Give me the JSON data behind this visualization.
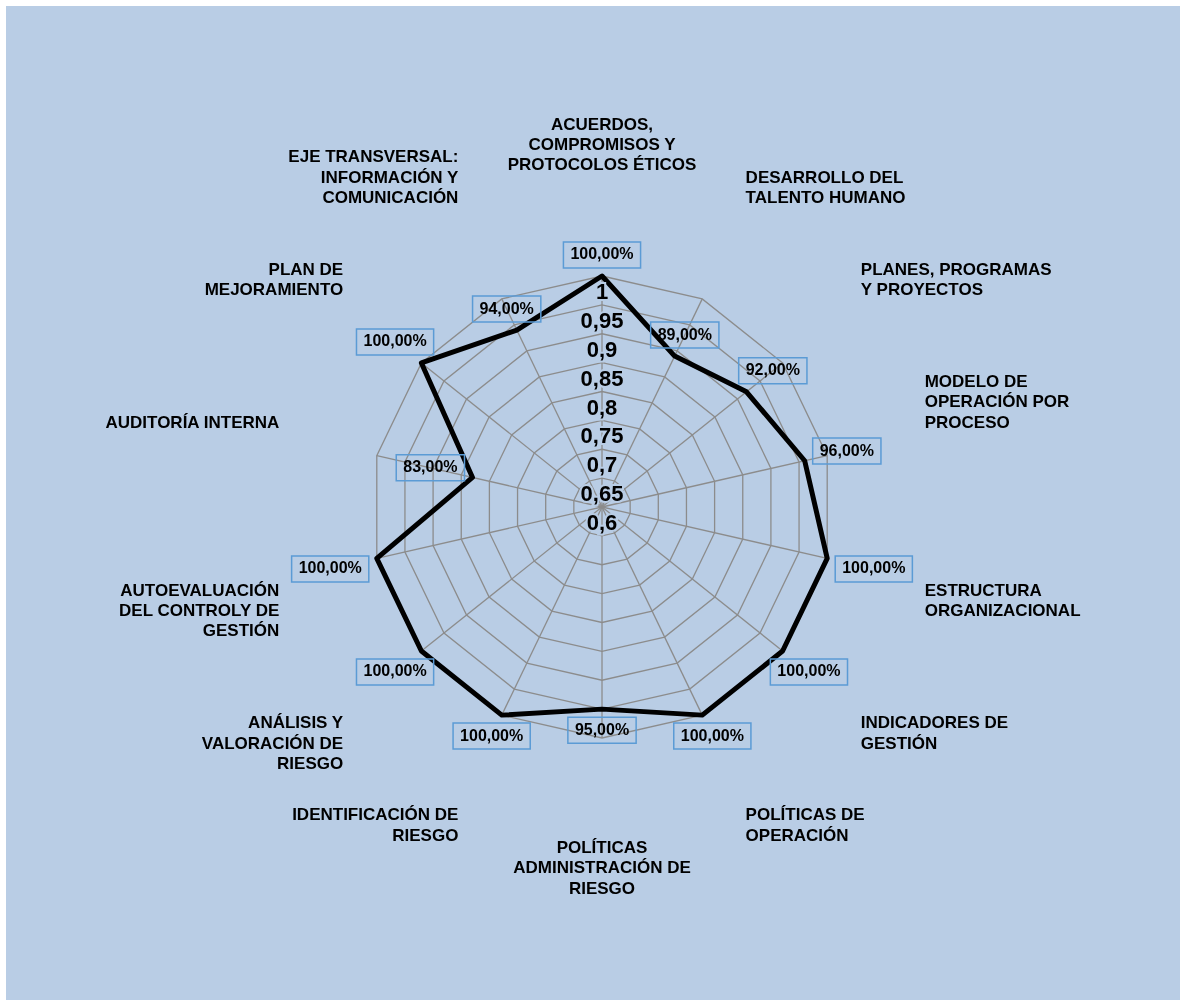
{
  "chart_data": {
    "type": "radar",
    "categories": [
      "ACUERDOS, COMPROMISOS Y PROTOCOLOS ÉTICOS",
      "DESARROLLO DEL TALENTO HUMANO",
      "PLANES, PROGRAMAS Y PROYECTOS",
      "MODELO DE OPERACIÓN POR PROCESO",
      "ESTRUCTURA ORGANIZACIONAL",
      "INDICADORES DE GESTIÓN",
      "POLÍTICAS DE OPERACIÓN",
      "POLÍTICAS ADMINISTRACIÓN DE RIESGO",
      "IDENTIFICACIÓN DE RIESGO",
      "ANÁLISIS Y VALORACIÓN DE RIESGO",
      "AUTOEVALUACIÓN DEL CONTROLY DE GESTIÓN",
      "AUDITORÍA INTERNA",
      "PLAN DE MEJORAMIENTO",
      "EJE TRANSVERSAL: INFORMACIÓN Y COMUNICACIÓN"
    ],
    "series": [
      {
        "color": "#000000",
        "values": [
          1,
          0.89,
          0.92,
          0.96,
          1,
          1,
          1,
          0.95,
          1,
          1,
          1,
          0.83,
          1,
          0.94
        ],
        "value_labels": [
          "100,00%",
          "89,00%",
          "92,00%",
          "96,00%",
          "100,00%",
          "100,00%",
          "100,00%",
          "95,00%",
          "100,00%",
          "100,00%",
          "100,00%",
          "83,00%",
          "100,00%",
          "94,00%"
        ]
      }
    ],
    "ylim": [
      0.6,
      1
    ],
    "yticks": [
      {
        "value": 0.6,
        "label": "0,6"
      },
      {
        "value": 0.65,
        "label": "0,65"
      },
      {
        "value": 0.7,
        "label": "0,7"
      },
      {
        "value": 0.75,
        "label": "0,75"
      },
      {
        "value": 0.8,
        "label": "0,8"
      },
      {
        "value": 0.85,
        "label": "0,85"
      },
      {
        "value": 0.9,
        "label": "0,9"
      },
      {
        "value": 0.95,
        "label": "0,95"
      },
      {
        "value": 1,
        "label": "1"
      }
    ],
    "grid": true,
    "marker": "none",
    "legend": false
  }
}
